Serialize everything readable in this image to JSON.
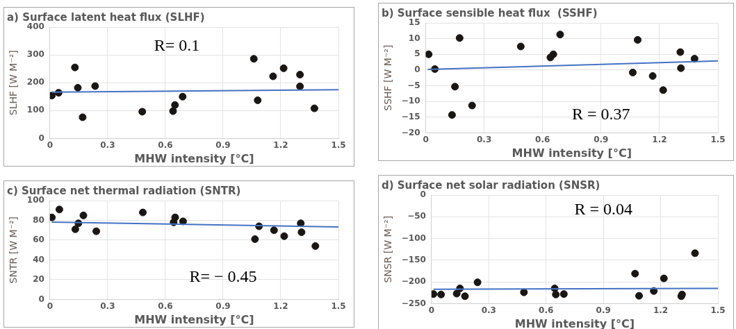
{
  "chart_data": [
    {
      "type": "scatter",
      "title": "a) Surface latent heat flux (SLHF)",
      "xlabel": "MHW intensity [°C]",
      "ylabel": "SLHF [W M⁻²]",
      "xlim": [
        0,
        1.5
      ],
      "xticks": [
        0,
        0.3,
        0.6,
        0.9,
        1.2,
        1.5
      ],
      "ylim": [
        0,
        400
      ],
      "yticks": [
        0,
        100,
        200,
        300,
        400
      ],
      "grid": true,
      "legend": false,
      "annotations": [
        "R= 0.1"
      ],
      "series": [
        {
          "marker": "circle",
          "color": "#1a1614",
          "x": [
            0.01,
            0.045,
            0.13,
            0.145,
            0.17,
            0.235,
            0.48,
            0.64,
            0.65,
            0.69,
            1.06,
            1.08,
            1.16,
            1.215,
            1.3,
            1.3,
            1.375
          ],
          "values": [
            154,
            164,
            255,
            182,
            76,
            188,
            96,
            98,
            120,
            150,
            286,
            137,
            223,
            252,
            229,
            187,
            108
          ]
        },
        {
          "type": "line",
          "color": "#4472c4",
          "x": [
            0.01,
            1.5
          ],
          "values": [
            166,
            175
          ],
          "marker": "none"
        }
      ]
    },
    {
      "type": "scatter",
      "title": "b) Surface sensible heat flux  (SSHF)",
      "xlabel": "MHW intensity [°C]",
      "ylabel": "SSHF [W M⁻²]",
      "xlim": [
        0,
        1.5
      ],
      "xticks": [
        0,
        0.3,
        0.6,
        0.9,
        1.2,
        1.5
      ],
      "ylim": [
        -20,
        15
      ],
      "yticks": [
        -20,
        -15,
        -10,
        -5,
        0,
        5,
        10,
        15
      ],
      "grid": true,
      "legend": false,
      "annotations": [
        "R = 0.37"
      ],
      "series": [
        {
          "marker": "circle",
          "color": "#1a1614",
          "x": [
            0.015,
            0.047,
            0.135,
            0.15,
            0.174,
            0.238,
            0.488,
            0.64,
            0.655,
            0.69,
            1.063,
            1.088,
            1.165,
            1.219,
            1.307,
            1.31,
            1.38
          ],
          "values": [
            5.0,
            0.3,
            -14.3,
            -5.3,
            10.2,
            -11.3,
            7.5,
            4.0,
            5.0,
            11.3,
            -0.8,
            9.6,
            -1.9,
            -6.4,
            5.7,
            0.6,
            3.6
          ]
        },
        {
          "type": "line",
          "color": "#4472c4",
          "x": [
            0.01,
            1.5
          ],
          "values": [
            0.2,
            2.9
          ],
          "marker": "none"
        }
      ]
    },
    {
      "type": "scatter",
      "title": "c) Surface net thermal radiation (SNTR)",
      "xlabel": "MHW intensity [°C]",
      "ylabel": "SNTR [W M⁻²]",
      "xlim": [
        0,
        1.5
      ],
      "xticks": [
        0,
        0.3,
        0.6,
        0.9,
        1.2,
        1.5
      ],
      "ylim": [
        0,
        100
      ],
      "yticks": [
        0,
        20,
        40,
        60,
        80,
        100
      ],
      "grid": true,
      "legend": false,
      "annotations": [
        "R= − 0.45"
      ],
      "series": [
        {
          "marker": "circle",
          "color": "#1a1614",
          "x": [
            0.01,
            0.049,
            0.132,
            0.148,
            0.174,
            0.241,
            0.483,
            0.643,
            0.651,
            0.692,
            1.066,
            1.087,
            1.165,
            1.218,
            1.304,
            1.308,
            1.38
          ],
          "values": [
            83,
            91,
            71,
            77,
            85,
            69,
            88,
            78,
            83,
            79,
            61,
            74,
            70,
            64,
            77,
            68,
            54
          ]
        },
        {
          "type": "line",
          "color": "#4472c4",
          "x": [
            0.01,
            1.5
          ],
          "values": [
            78.3,
            73.3
          ],
          "marker": "none"
        }
      ]
    },
    {
      "type": "scatter",
      "title": "d) Surface net solar radiation (SNSR)",
      "xlabel": "MHW intensity [°C]",
      "ylabel": "SNSR [W M⁻²]",
      "xlim": [
        0,
        1.5
      ],
      "xticks": [
        0,
        0.3,
        0.6,
        0.9,
        1.2,
        1.5
      ],
      "ylim": [
        -250,
        0
      ],
      "yticks": [
        -250,
        -200,
        -150,
        -100,
        -50,
        0
      ],
      "grid": true,
      "legend": false,
      "annotations": [
        "R = 0.04"
      ],
      "series": [
        {
          "marker": "circle",
          "color": "#1a1614",
          "x": [
            0.01,
            0.05,
            0.132,
            0.149,
            0.175,
            0.241,
            0.484,
            0.645,
            0.651,
            0.693,
            1.066,
            1.087,
            1.164,
            1.217,
            1.308,
            1.312,
            1.38
          ],
          "values": [
            -228,
            -229,
            -227,
            -215,
            -233,
            -201,
            -224,
            -215,
            -229,
            -228,
            -181,
            -232,
            -221,
            -192,
            -233,
            -229,
            -134
          ]
        },
        {
          "type": "line",
          "color": "#4472c4",
          "x": [
            0.01,
            1.5
          ],
          "values": [
            -217,
            -215
          ],
          "marker": "none"
        }
      ]
    }
  ]
}
